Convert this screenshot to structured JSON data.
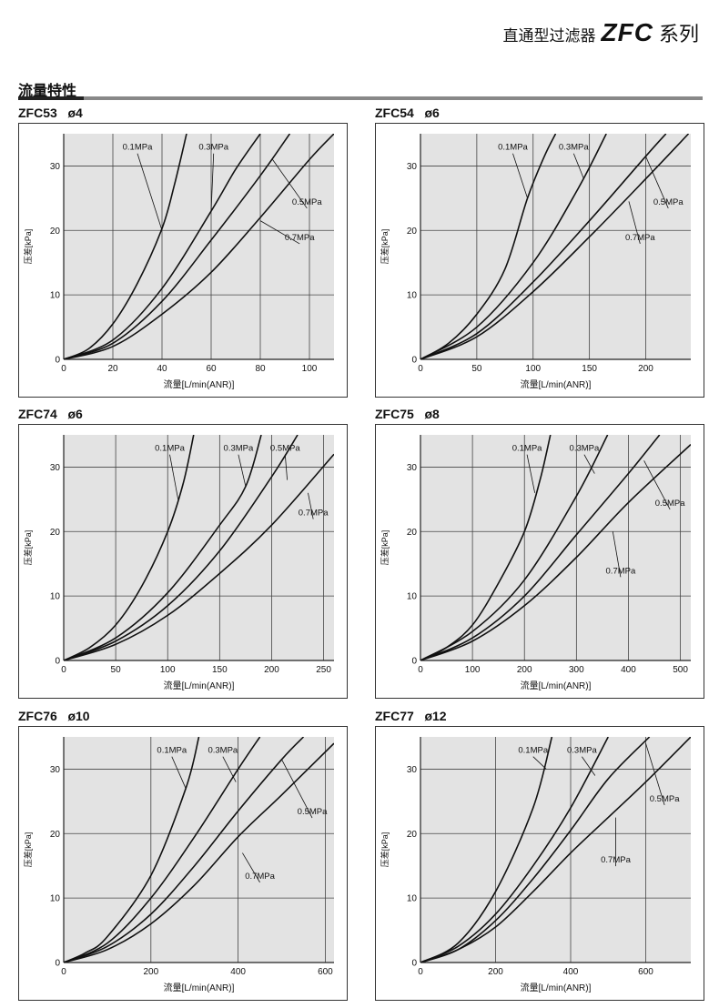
{
  "header": {
    "title_cn": "直通型过滤器",
    "model": "ZFC",
    "series_cn": "系列"
  },
  "section": {
    "title": "流量特性"
  },
  "chart_data": [
    {
      "type": "line",
      "title": "ZFC53",
      "port": "ø4",
      "xlabel": "流量[L/min(ANR)]",
      "ylabel": "压差[kPa]",
      "xlim": [
        0,
        110
      ],
      "ylim": [
        0,
        35
      ],
      "xticks": [
        0,
        20,
        40,
        60,
        80,
        100
      ],
      "yticks": [
        0,
        10,
        20,
        30
      ],
      "series": [
        {
          "name": "0.1MPa",
          "x": [
            0,
            10,
            20,
            30,
            40,
            45,
            50
          ],
          "y": [
            0,
            1.6,
            5.5,
            11.8,
            20.3,
            27,
            35
          ],
          "label_x": 40,
          "label_y": 20,
          "label_at": [
            30,
            32.5
          ]
        },
        {
          "name": "0.3MPa",
          "x": [
            0,
            20,
            40,
            60,
            70,
            80
          ],
          "y": [
            0,
            3.0,
            11.0,
            23.0,
            29.5,
            35
          ],
          "label_x": 60,
          "label_y": 23,
          "label_at": [
            61,
            32.5
          ]
        },
        {
          "name": "0.5MPa",
          "x": [
            0,
            20,
            40,
            60,
            80,
            92
          ],
          "y": [
            0,
            2.5,
            9.0,
            18.5,
            28.5,
            35
          ],
          "label_x": 85,
          "label_y": 31,
          "label_at": [
            99,
            24
          ]
        },
        {
          "name": "0.7MPa",
          "x": [
            0,
            20,
            40,
            60,
            80,
            100,
            110
          ],
          "y": [
            0,
            2.0,
            7.0,
            13.5,
            22.0,
            31.0,
            35
          ],
          "label_x": 80,
          "label_y": 21.5,
          "label_at": [
            96,
            18.5
          ]
        }
      ]
    },
    {
      "type": "line",
      "title": "ZFC54",
      "port": "ø6",
      "xlabel": "流量[L/min(ANR)]",
      "ylabel": "压差[kPa]",
      "xlim": [
        0,
        240
      ],
      "ylim": [
        0,
        35
      ],
      "xticks": [
        0,
        50,
        100,
        150,
        200
      ],
      "yticks": [
        0,
        10,
        20,
        30
      ],
      "series": [
        {
          "name": "0.1MPa",
          "x": [
            0,
            25,
            50,
            75,
            95,
            110,
            120
          ],
          "y": [
            0,
            2.5,
            7.0,
            14.0,
            25.0,
            31.5,
            35
          ],
          "label_x": 95,
          "label_y": 25,
          "label_at": [
            82,
            32.5
          ]
        },
        {
          "name": "0.3MPa",
          "x": [
            0,
            50,
            100,
            140,
            165
          ],
          "y": [
            0,
            5.0,
            15.0,
            26.5,
            35
          ],
          "label_x": 145,
          "label_y": 28,
          "label_at": [
            136,
            32.5
          ]
        },
        {
          "name": "0.5MPa",
          "x": [
            0,
            50,
            100,
            150,
            200,
            218
          ],
          "y": [
            0,
            4.0,
            12.0,
            21.5,
            31.5,
            35
          ],
          "label_x": 200,
          "label_y": 31.5,
          "label_at": [
            220,
            24
          ]
        },
        {
          "name": "0.7MPa",
          "x": [
            0,
            50,
            100,
            150,
            200,
            238
          ],
          "y": [
            0,
            3.5,
            10.5,
            19.0,
            28.0,
            35
          ],
          "label_x": 185,
          "label_y": 24.5,
          "label_at": [
            195,
            18.5
          ]
        }
      ]
    },
    {
      "type": "line",
      "title": "ZFC74",
      "port": "ø6",
      "xlabel": "流量[L/min(ANR)]",
      "ylabel": "压差[kPa]",
      "xlim": [
        0,
        260
      ],
      "ylim": [
        0,
        35
      ],
      "xticks": [
        0,
        50,
        100,
        150,
        200,
        250
      ],
      "yticks": [
        0,
        10,
        20,
        30
      ],
      "series": [
        {
          "name": "0.1MPa",
          "x": [
            0,
            25,
            50,
            75,
            100,
            115,
            125
          ],
          "y": [
            0,
            2.0,
            5.5,
            11.5,
            20.0,
            27.5,
            35
          ],
          "label_x": 110,
          "label_y": 25,
          "label_at": [
            102,
            32.5
          ]
        },
        {
          "name": "0.3MPa",
          "x": [
            0,
            50,
            100,
            150,
            175,
            190
          ],
          "y": [
            0,
            3.5,
            10.5,
            21.0,
            27.0,
            35
          ],
          "label_x": 175,
          "label_y": 27,
          "label_at": [
            168,
            32.5
          ]
        },
        {
          "name": "0.5MPa",
          "x": [
            0,
            50,
            100,
            150,
            200,
            225
          ],
          "y": [
            0,
            3.0,
            8.5,
            17.0,
            28.5,
            35
          ],
          "label_x": 215,
          "label_y": 28,
          "label_at": [
            213,
            32.5
          ]
        },
        {
          "name": "0.7MPa",
          "x": [
            0,
            50,
            100,
            150,
            200,
            260
          ],
          "y": [
            0,
            2.5,
            7.0,
            13.5,
            21.0,
            32.0
          ],
          "label_x": 235,
          "label_y": 26,
          "label_at": [
            240,
            22.5
          ]
        }
      ]
    },
    {
      "type": "line",
      "title": "ZFC75",
      "port": "ø8",
      "xlabel": "流量[L/min(ANR)]",
      "ylabel": "压差[kPa]",
      "xlim": [
        0,
        520
      ],
      "ylim": [
        0,
        35
      ],
      "xticks": [
        0,
        100,
        200,
        300,
        400,
        500
      ],
      "yticks": [
        0,
        10,
        20,
        30
      ],
      "series": [
        {
          "name": "0.1MPa",
          "x": [
            0,
            50,
            100,
            150,
            200,
            230,
            250
          ],
          "y": [
            0,
            2.0,
            5.5,
            12.0,
            20.0,
            28.0,
            35
          ],
          "label_x": 220,
          "label_y": 26,
          "label_at": [
            205,
            32.5
          ]
        },
        {
          "name": "0.3MPa",
          "x": [
            0,
            100,
            200,
            300,
            360
          ],
          "y": [
            0,
            4.5,
            12.5,
            25.5,
            35
          ],
          "label_x": 335,
          "label_y": 29,
          "label_at": [
            315,
            32.5
          ]
        },
        {
          "name": "0.5MPa",
          "x": [
            0,
            100,
            200,
            300,
            400,
            460
          ],
          "y": [
            0,
            3.5,
            10.0,
            19.5,
            29.0,
            35
          ],
          "label_x": 430,
          "label_y": 31,
          "label_at": [
            480,
            24
          ]
        },
        {
          "name": "0.7MPa",
          "x": [
            0,
            100,
            200,
            300,
            400,
            520
          ],
          "y": [
            0,
            3.0,
            8.5,
            16.0,
            24.5,
            33.5
          ],
          "label_x": 370,
          "label_y": 20,
          "label_at": [
            385,
            13.5
          ]
        }
      ]
    },
    {
      "type": "line",
      "title": "ZFC76",
      "port": "ø10",
      "xlabel": "流量[L/min(ANR)]",
      "ylabel": "压差[kPa]",
      "xlim": [
        0,
        620
      ],
      "ylim": [
        0,
        35
      ],
      "xticks": [
        0,
        200,
        400,
        600
      ],
      "yticks": [
        0,
        10,
        20,
        30
      ],
      "series": [
        {
          "name": "0.1MPa",
          "x": [
            0,
            50,
            100,
            200,
            280,
            310
          ],
          "y": [
            0,
            1.5,
            4.0,
            13.5,
            27.0,
            35
          ],
          "label_x": 280,
          "label_y": 27,
          "label_at": [
            248,
            32.5
          ]
        },
        {
          "name": "0.3MPa",
          "x": [
            0,
            100,
            200,
            300,
            400,
            450
          ],
          "y": [
            0,
            3.0,
            10.0,
            19.5,
            30.0,
            35
          ],
          "label_x": 395,
          "label_y": 28,
          "label_at": [
            365,
            32.5
          ]
        },
        {
          "name": "0.5MPa",
          "x": [
            0,
            100,
            200,
            300,
            400,
            500,
            550
          ],
          "y": [
            0,
            2.5,
            7.5,
            15.0,
            23.5,
            31.5,
            35
          ],
          "label_x": 500,
          "label_y": 31.5,
          "label_at": [
            570,
            23
          ]
        },
        {
          "name": "0.7MPa",
          "x": [
            0,
            100,
            200,
            300,
            400,
            500,
            620
          ],
          "y": [
            0,
            2.0,
            6.0,
            12.0,
            19.5,
            26.0,
            34.0
          ],
          "label_x": 410,
          "label_y": 17,
          "label_at": [
            450,
            13
          ]
        }
      ]
    },
    {
      "type": "line",
      "title": "ZFC77",
      "port": "ø12",
      "xlabel": "流量[L/min(ANR)]",
      "ylabel": "压差[kPa]",
      "xlim": [
        0,
        720
      ],
      "ylim": [
        0,
        35
      ],
      "xticks": [
        0,
        200,
        400,
        600
      ],
      "yticks": [
        0,
        10,
        20,
        30
      ],
      "series": [
        {
          "name": "0.1MPa",
          "x": [
            0,
            100,
            200,
            300,
            350
          ],
          "y": [
            0,
            3.0,
            11.0,
            24.0,
            35
          ],
          "label_x": 335,
          "label_y": 30,
          "label_at": [
            300,
            32.5
          ]
        },
        {
          "name": "0.3MPa",
          "x": [
            0,
            100,
            200,
            300,
            400,
            500
          ],
          "y": [
            0,
            2.5,
            7.5,
            15.0,
            24.0,
            35
          ],
          "label_x": 465,
          "label_y": 29,
          "label_at": [
            430,
            32.5
          ]
        },
        {
          "name": "0.5MPa",
          "x": [
            0,
            100,
            200,
            300,
            400,
            500,
            610
          ],
          "y": [
            0,
            2.0,
            6.5,
            13.0,
            20.5,
            28.5,
            35
          ],
          "label_x": 600,
          "label_y": 34,
          "label_at": [
            650,
            25
          ]
        },
        {
          "name": "0.7MPa",
          "x": [
            0,
            100,
            200,
            300,
            400,
            500,
            600,
            720
          ],
          "y": [
            0,
            2.0,
            5.5,
            11.0,
            17.0,
            22.5,
            28.0,
            35
          ],
          "label_x": 520,
          "label_y": 22.5,
          "label_at": [
            520,
            15.5
          ]
        }
      ]
    }
  ]
}
